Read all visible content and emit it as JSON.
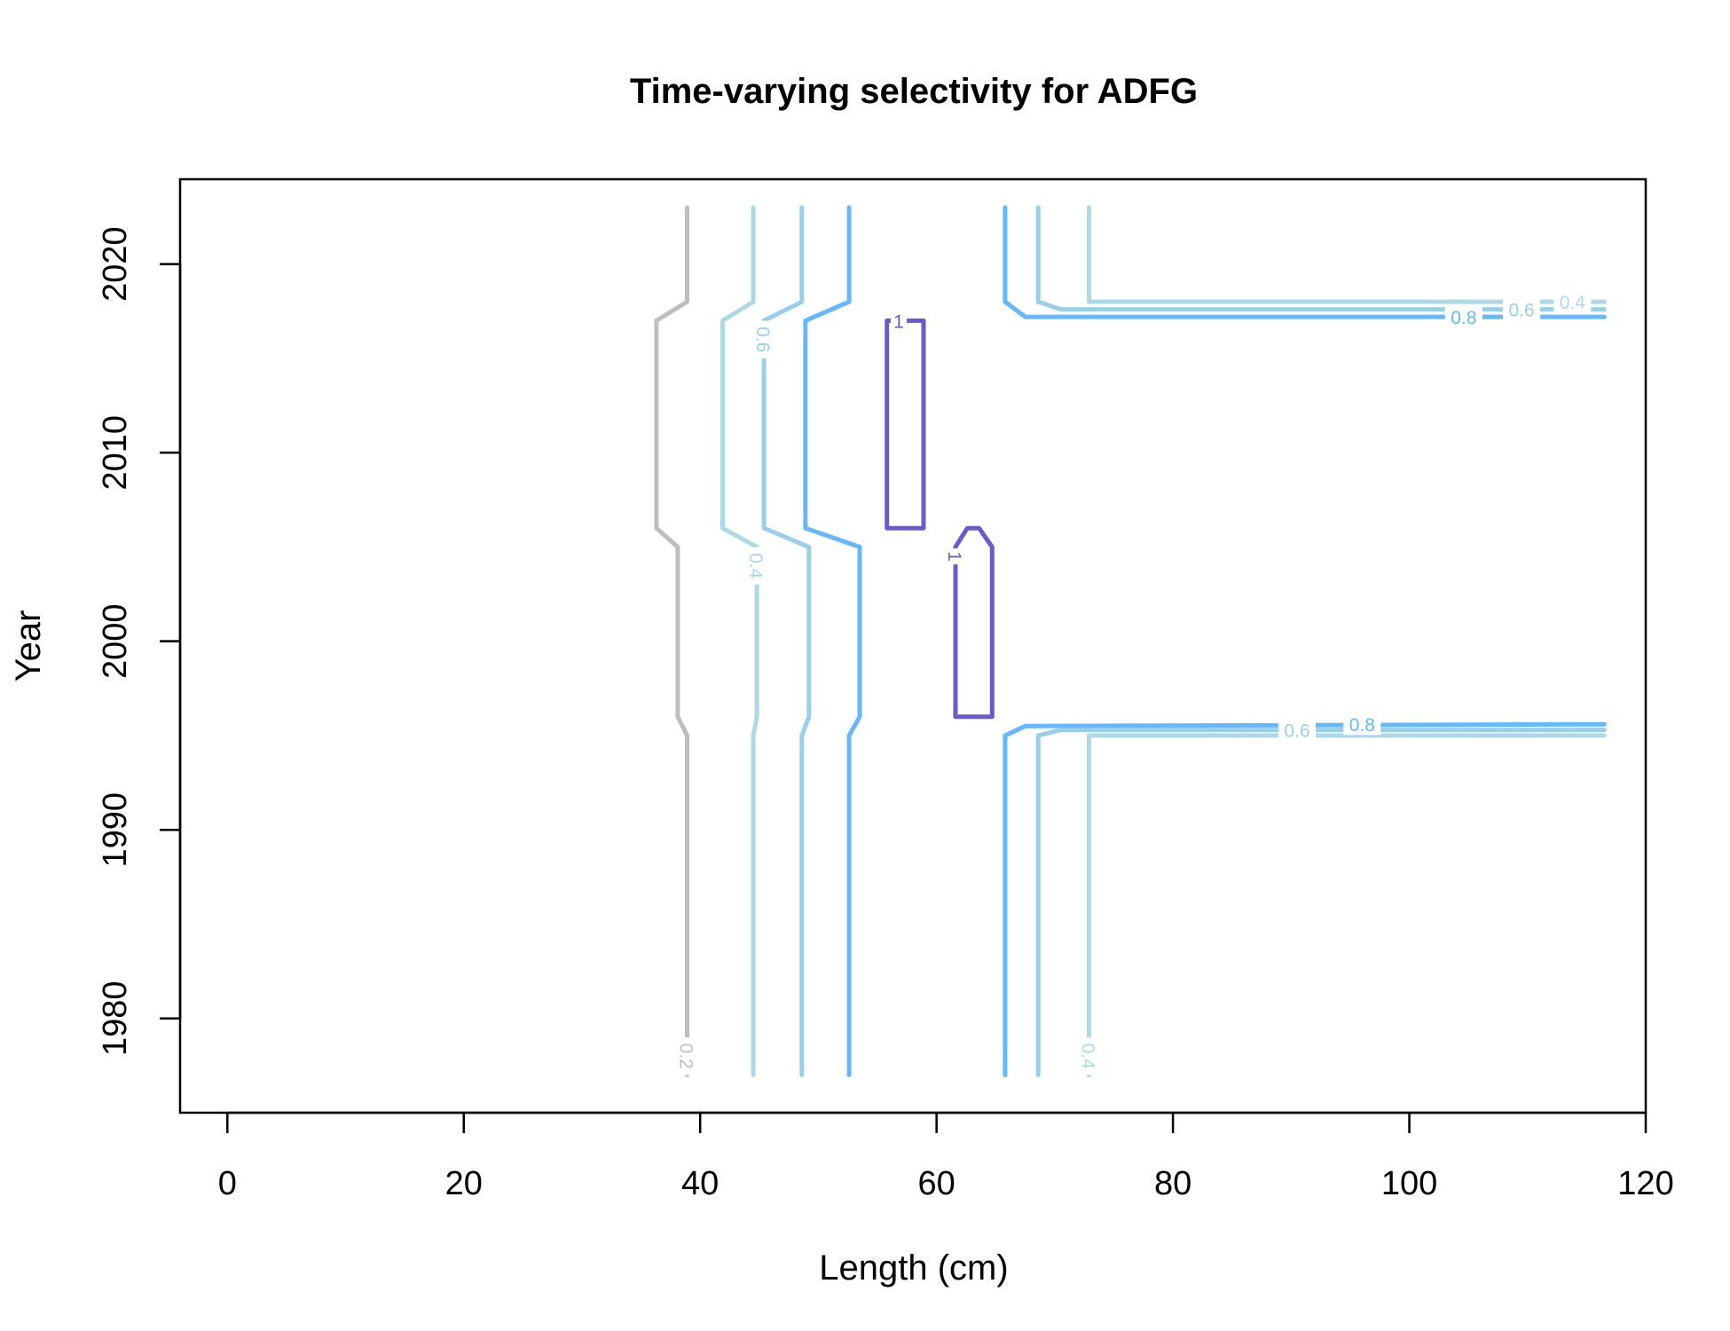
{
  "chart_data": {
    "type": "contour",
    "title": "Time-varying selectivity for ADFG",
    "xlabel": "Length (cm)",
    "ylabel": "Year",
    "xlim": [
      -4,
      120
    ],
    "ylim": [
      1975,
      2024.5
    ],
    "xticks": [
      0,
      20,
      40,
      60,
      80,
      100,
      120
    ],
    "yticks": [
      1980,
      1990,
      2000,
      2010,
      2020
    ],
    "grid": false,
    "colors": {
      "0.2": "#bebebe",
      "0.4": "#add8e6",
      "0.6": "#9acfea",
      "0.8": "#63b8ff",
      "1": "#6a5acd"
    },
    "contours": [
      {
        "level": 0.2,
        "path": [
          [
            38.9,
            1977
          ],
          [
            38.9,
            1995
          ],
          [
            38.1,
            1996
          ],
          [
            38.1,
            2005
          ],
          [
            36.3,
            2006
          ],
          [
            36.3,
            2017
          ],
          [
            38.9,
            2018
          ],
          [
            38.9,
            2023
          ]
        ]
      },
      {
        "level": 0.4,
        "path": [
          [
            44.5,
            1977
          ],
          [
            44.5,
            1995
          ],
          [
            44.8,
            1996
          ],
          [
            44.8,
            2005
          ],
          [
            41.9,
            2006
          ],
          [
            41.9,
            2017
          ],
          [
            44.5,
            2018
          ],
          [
            44.5,
            2023
          ]
        ]
      },
      {
        "level": 0.6,
        "path": [
          [
            48.6,
            1977
          ],
          [
            48.6,
            1995
          ],
          [
            49.2,
            1996
          ],
          [
            49.2,
            2005
          ],
          [
            45.4,
            2006
          ],
          [
            45.4,
            2017
          ],
          [
            48.6,
            2018
          ],
          [
            48.6,
            2023
          ]
        ]
      },
      {
        "level": 0.8,
        "path": [
          [
            52.6,
            1977
          ],
          [
            52.6,
            1995
          ],
          [
            53.5,
            1996
          ],
          [
            53.5,
            2005
          ],
          [
            48.9,
            2006
          ],
          [
            48.9,
            2017
          ],
          [
            52.6,
            2018
          ],
          [
            52.6,
            2023
          ]
        ]
      },
      {
        "level": 1,
        "path": [
          [
            55.8,
            2006
          ],
          [
            55.8,
            2017
          ],
          [
            58.9,
            2017
          ],
          [
            58.9,
            2006
          ],
          [
            55.8,
            2006
          ]
        ]
      },
      {
        "level": 1,
        "path": [
          [
            61.6,
            1996
          ],
          [
            61.6,
            2005
          ],
          [
            62.6,
            2006
          ],
          [
            63.6,
            2006
          ],
          [
            64.7,
            2005
          ],
          [
            64.7,
            1996
          ],
          [
            61.6,
            1996
          ]
        ]
      },
      {
        "level": 0.8,
        "path": [
          [
            65.8,
            1977
          ],
          [
            65.8,
            1995
          ],
          [
            67.5,
            1995.5
          ],
          [
            116.5,
            1995.6
          ]
        ]
      },
      {
        "level": 0.6,
        "path": [
          [
            68.6,
            1977
          ],
          [
            68.6,
            1995
          ],
          [
            70.5,
            1995.3
          ],
          [
            116.5,
            1995.3
          ]
        ]
      },
      {
        "level": 0.4,
        "path": [
          [
            72.9,
            1977
          ],
          [
            72.9,
            1995
          ],
          [
            116.5,
            1995
          ]
        ]
      },
      {
        "level": 0.8,
        "path": [
          [
            65.8,
            2023
          ],
          [
            65.8,
            2018
          ],
          [
            67.5,
            2017.2
          ],
          [
            116.5,
            2017.2
          ]
        ]
      },
      {
        "level": 0.6,
        "path": [
          [
            68.6,
            2023
          ],
          [
            68.6,
            2018
          ],
          [
            70.5,
            2017.6
          ],
          [
            116.5,
            2017.6
          ]
        ]
      },
      {
        "level": 0.4,
        "path": [
          [
            72.9,
            2023
          ],
          [
            72.9,
            2018
          ],
          [
            116.5,
            2018
          ]
        ]
      }
    ],
    "contour_labels": [
      {
        "text": "0.2",
        "level": 0.2,
        "x": 38.9,
        "y": 1978,
        "rotate": 90
      },
      {
        "text": "0.4",
        "level": 0.4,
        "x": 44.8,
        "y": 2004,
        "rotate": 90
      },
      {
        "text": "0.6",
        "level": 0.6,
        "x": 45.4,
        "y": 2016,
        "rotate": 90
      },
      {
        "text": "1",
        "level": 1,
        "x": 56.8,
        "y": 2017,
        "rotate": 0
      },
      {
        "text": "1",
        "level": 1,
        "x": 61.6,
        "y": 2004.5,
        "rotate": 90
      },
      {
        "text": "0.4",
        "level": 0.4,
        "x": 72.9,
        "y": 1978,
        "rotate": 90
      },
      {
        "text": "0.6",
        "level": 0.6,
        "x": 90.5,
        "y": 1995.3,
        "rotate": 0
      },
      {
        "text": "0.8",
        "level": 0.8,
        "x": 96,
        "y": 1995.6,
        "rotate": 0
      },
      {
        "text": "0.8",
        "level": 0.8,
        "x": 104.6,
        "y": 2017.2,
        "rotate": 0
      },
      {
        "text": "0.6",
        "level": 0.6,
        "x": 109.5,
        "y": 2017.6,
        "rotate": 0
      },
      {
        "text": "0.4",
        "level": 0.4,
        "x": 113.8,
        "y": 2018,
        "rotate": 0
      }
    ]
  }
}
